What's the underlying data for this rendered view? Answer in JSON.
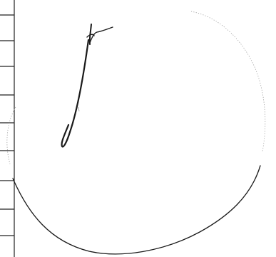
{
  "colors": {
    "paper": "#ffffff",
    "ink": "#1a1a1a",
    "rule_line": "#222222",
    "faint_trace": "#9a9a9a"
  },
  "ruled_strip": {
    "rows_visible": 10
  },
  "drawing": {
    "icon": "handwritten-scribble-icon"
  }
}
